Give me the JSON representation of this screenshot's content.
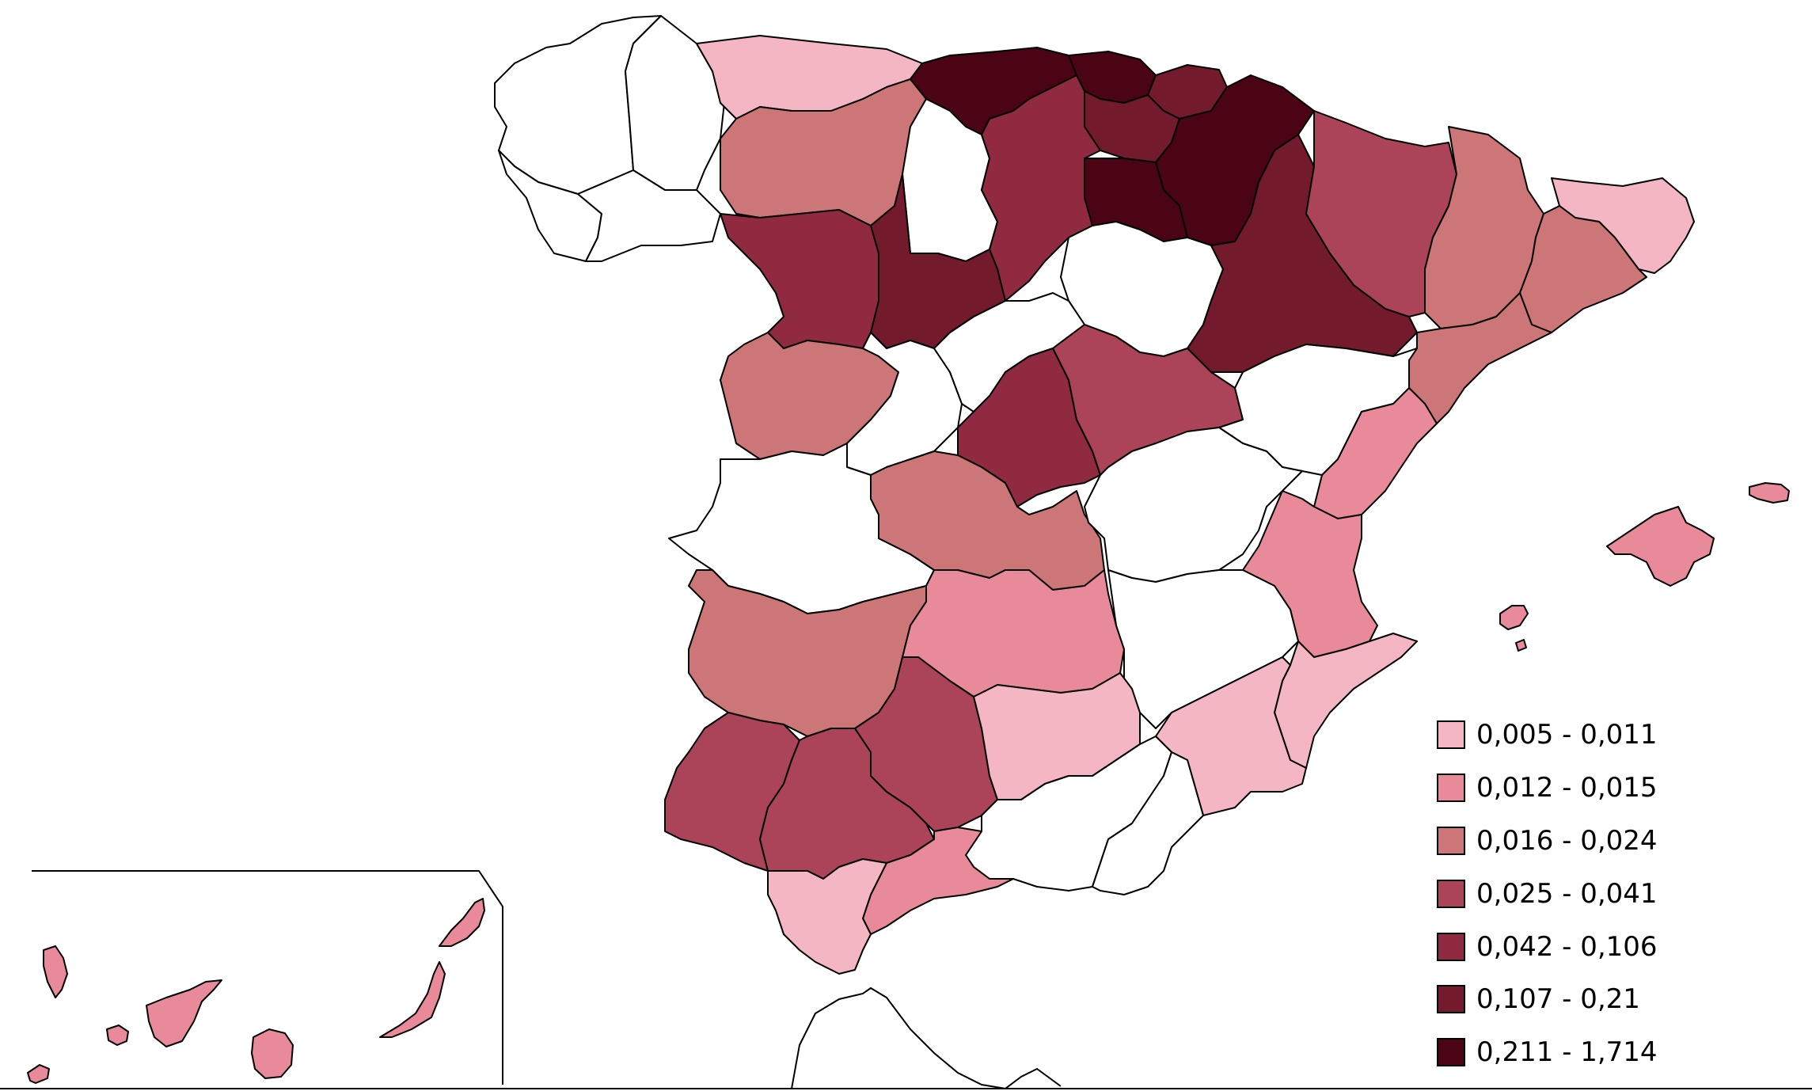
{
  "legend": {
    "classes": [
      {
        "label": "0,005 - 0,011",
        "color": "#f4b6c2"
      },
      {
        "label": "0,012 - 0,015",
        "color": "#e98a9a"
      },
      {
        "label": "0,016 - 0,024",
        "color": "#cd7677"
      },
      {
        "label": "0,025 - 0,041",
        "color": "#ac4459"
      },
      {
        "label": "0,042 - 0,106",
        "color": "#902a41"
      },
      {
        "label": "0,107 - 0,21",
        "color": "#731b2d"
      },
      {
        "label": "0,211 - 1,714",
        "color": "#4a0414"
      }
    ]
  },
  "no_data_color": "#ffffff"
}
